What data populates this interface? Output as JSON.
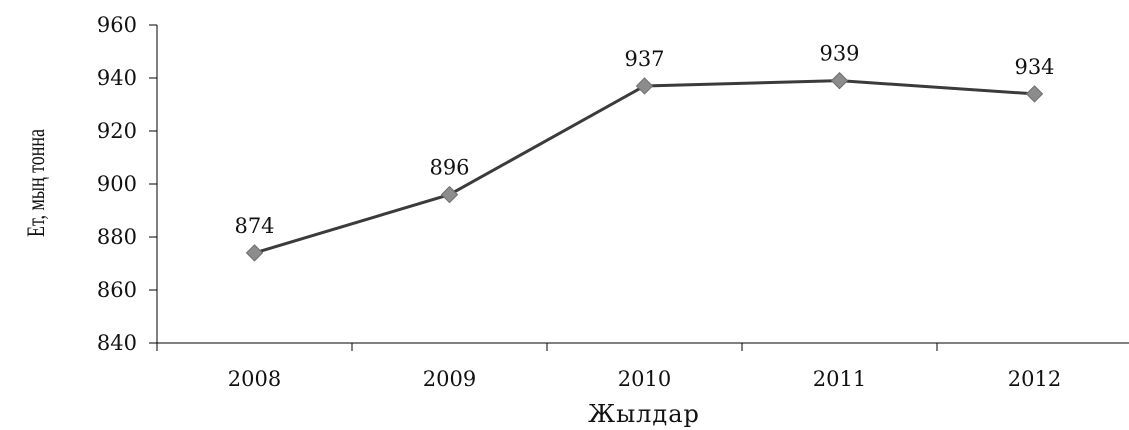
{
  "chart_data": {
    "type": "line",
    "title": "",
    "xlabel": "Жылдар",
    "ylabel": "Ет, мың тонна",
    "categories": [
      "2008",
      "2009",
      "2010",
      "2011",
      "2012"
    ],
    "series": [
      {
        "values": [
          874,
          896,
          937,
          939,
          934
        ]
      }
    ],
    "data_labels": [
      "874",
      "896",
      "937",
      "939",
      "934"
    ],
    "ylim": [
      840,
      960
    ],
    "y_ticks": [
      840,
      860,
      880,
      900,
      920,
      940,
      960
    ],
    "y_tick_labels": [
      "840",
      "860",
      "880",
      "900",
      "920",
      "940",
      "960"
    ],
    "grid": false,
    "legend": "none",
    "colors": {
      "line": "#3b3b3b",
      "marker": "#8c8c8c",
      "marker_stroke": "#6e6e6e",
      "axis": "#000000"
    }
  }
}
